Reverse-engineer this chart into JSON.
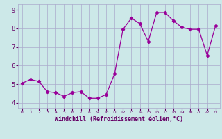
{
  "x": [
    0,
    1,
    2,
    3,
    4,
    5,
    6,
    7,
    8,
    9,
    10,
    11,
    12,
    13,
    14,
    15,
    16,
    17,
    18,
    19,
    20,
    21,
    22,
    23
  ],
  "y": [
    5.05,
    5.25,
    5.15,
    4.6,
    4.55,
    4.35,
    4.55,
    4.6,
    4.25,
    4.25,
    4.45,
    5.55,
    7.95,
    8.55,
    8.25,
    7.3,
    8.85,
    8.85,
    8.4,
    8.05,
    7.95,
    7.95,
    6.55,
    8.15
  ],
  "line_color": "#990099",
  "marker": "D",
  "markersize": 2.2,
  "linewidth": 0.9,
  "bg_color": "#cce8e8",
  "grid_color": "#aaaacc",
  "xlabel": "Windchill (Refroidissement éolien,°C)",
  "xlabel_color": "#660066",
  "tick_color": "#660066",
  "ylabel_values": [
    4,
    5,
    6,
    7,
    8,
    9
  ],
  "xlim": [
    -0.5,
    23.5
  ],
  "ylim": [
    3.7,
    9.3
  ],
  "xticks": [
    0,
    1,
    2,
    3,
    4,
    5,
    6,
    7,
    8,
    9,
    10,
    11,
    12,
    13,
    14,
    15,
    16,
    17,
    18,
    19,
    20,
    21,
    22,
    23
  ]
}
